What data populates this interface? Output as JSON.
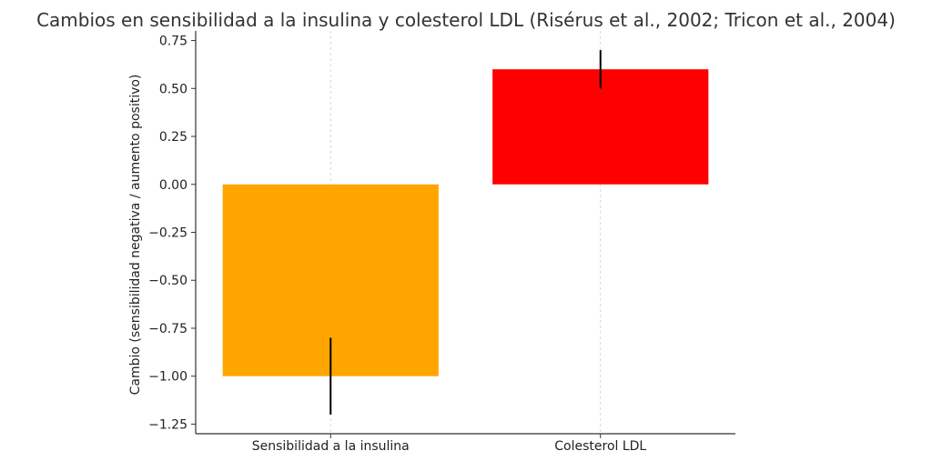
{
  "chart_data": {
    "type": "bar",
    "title": "Cambios en sensibilidad a la insulina y colesterol LDL (Risérus et al., 2002; Tricon et al., 2004)",
    "xlabel": "",
    "ylabel": "Cambio (sensibilidad negativa / aumento positivo)",
    "categories": [
      "Sensibilidad a la insulina",
      "Colesterol LDL"
    ],
    "values": [
      -1.0,
      0.6
    ],
    "errors": [
      0.2,
      0.1
    ],
    "colors": [
      "#FFA500",
      "#FF0000"
    ],
    "ylim": [
      -1.3,
      0.8
    ],
    "yticks": [
      0.75,
      0.5,
      0.25,
      0.0,
      -0.25,
      -0.5,
      -0.75,
      -1.0,
      -1.25
    ],
    "ytick_labels": [
      "0.75",
      "0.50",
      "0.25",
      "0.00",
      "−0.25",
      "−0.50",
      "−0.75",
      "−1.00",
      "−1.25"
    ],
    "grid": "x-dashed"
  }
}
